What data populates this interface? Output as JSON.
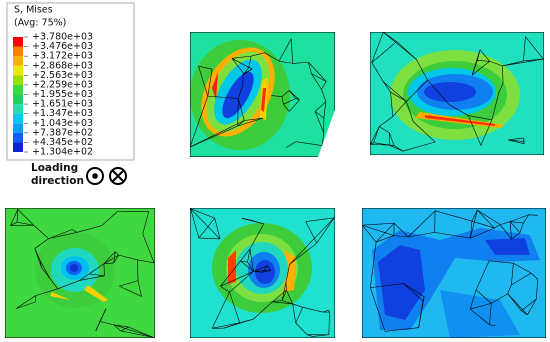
{
  "legend": {
    "title": "S, Mises",
    "subtitle": "(Avg: 75%)",
    "levels": [
      "+3.780e+03",
      "+3.476e+03",
      "+3.172e+03",
      "+2.868e+03",
      "+2.563e+03",
      "+2.259e+03",
      "+1.955e+03",
      "+1.651e+03",
      "+1.347e+03",
      "+1.043e+03",
      "+7.387e+02",
      "+4.345e+02",
      "+1.304e+02"
    ]
  },
  "loading": {
    "line1": "Loading",
    "line2": "direction"
  }
}
